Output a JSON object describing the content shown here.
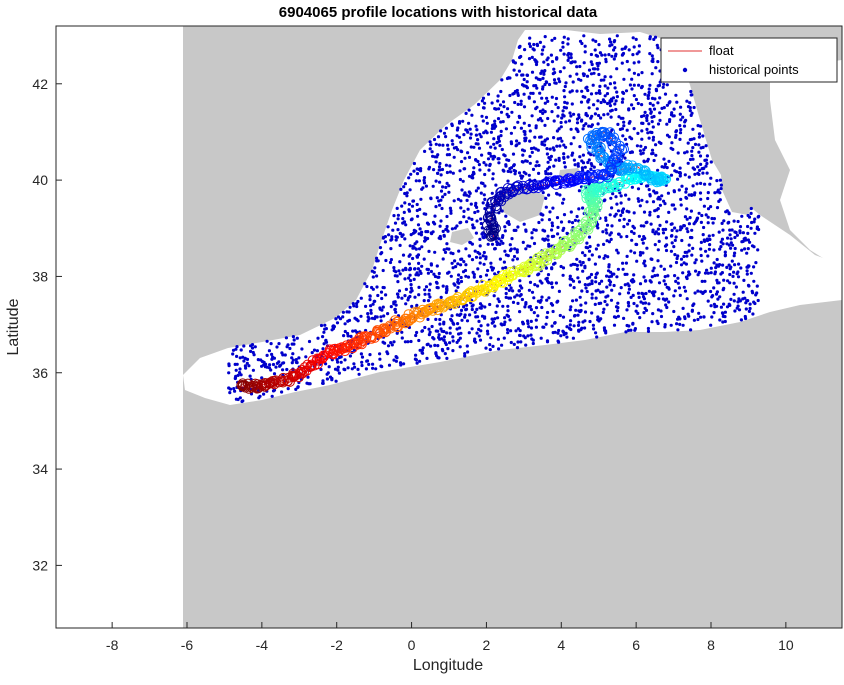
{
  "chart_data": {
    "type": "scatter",
    "title": "6904065 profile locations with historical data",
    "xlabel": "Longitude",
    "ylabel": "Latitude",
    "xlim": [
      -9.5,
      11.5
    ],
    "ylim": [
      30.7,
      43.2
    ],
    "xticks": [
      "-8",
      "-6",
      "-4",
      "-2",
      "0",
      "2",
      "4",
      "6",
      "8",
      "10"
    ],
    "yticks": [
      "32",
      "34",
      "36",
      "38",
      "40",
      "42"
    ],
    "grid": false,
    "legend_position": "top-right",
    "legend": [
      "float",
      "historical points"
    ],
    "colors": {
      "land": "#c8c8c8",
      "sea": "#ffffff",
      "historical": "#0000cc",
      "float_line": "#e03030",
      "axis": "#262626"
    },
    "float_track": {
      "name": "float",
      "color_scale": "jet (early profiles dark red, late profiles blue)",
      "lon": [
        -4.6,
        -4.2,
        -3.8,
        -3.4,
        -3.0,
        -2.6,
        -2.2,
        -1.8,
        -1.4,
        -1.0,
        -0.6,
        -0.2,
        0.2,
        0.6,
        1.0,
        1.4,
        1.8,
        2.2,
        2.6,
        3.0,
        3.4,
        3.8,
        4.2,
        4.6,
        4.8,
        4.9,
        4.7,
        5.0,
        5.4,
        5.9,
        6.3,
        6.7,
        6.5,
        6.0,
        5.5,
        5.0,
        4.8,
        5.2,
        5.6,
        5.2,
        4.7,
        4.2,
        3.6,
        3.0,
        2.5,
        2.2,
        2.1,
        2.2
      ],
      "lat": [
        35.72,
        35.72,
        35.78,
        35.85,
        35.95,
        36.2,
        36.4,
        36.5,
        36.65,
        36.8,
        36.95,
        37.1,
        37.22,
        37.35,
        37.45,
        37.55,
        37.7,
        37.85,
        38.0,
        38.15,
        38.3,
        38.5,
        38.7,
        38.95,
        39.3,
        39.55,
        39.75,
        39.8,
        39.9,
        40.05,
        40.1,
        40.05,
        40.0,
        40.3,
        40.2,
        40.55,
        40.9,
        41.0,
        40.6,
        40.1,
        40.05,
        40.0,
        39.9,
        39.85,
        39.75,
        39.5,
        39.1,
        38.8
      ]
    },
    "historical_points": {
      "name": "historical points",
      "approx_count": 3000,
      "region_lon": [
        -4.9,
        9.3
      ],
      "region_lat": [
        35.1,
        43.0
      ]
    }
  }
}
